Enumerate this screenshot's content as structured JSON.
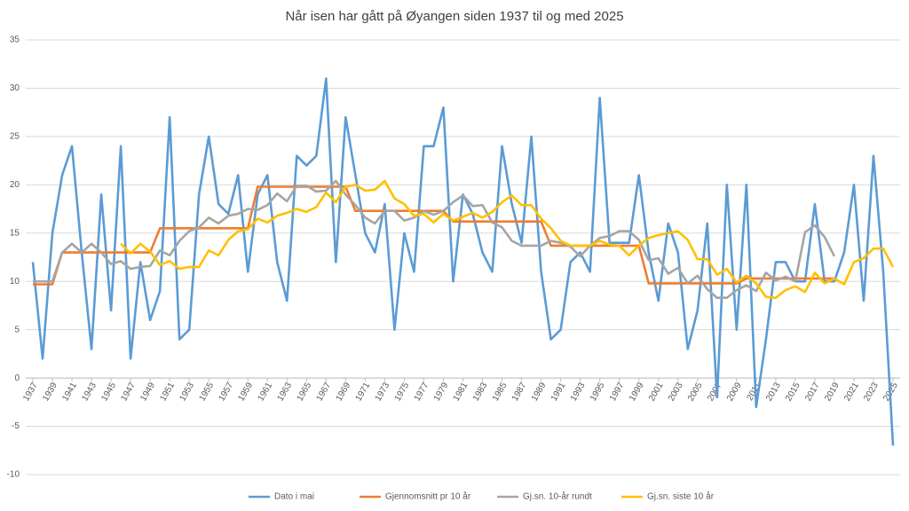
{
  "chart_data": {
    "type": "line",
    "title": "Når isen har gått på Øyangen siden 1937 til og med 2025",
    "x": [
      1937,
      1938,
      1939,
      1940,
      1941,
      1942,
      1943,
      1944,
      1945,
      1946,
      1947,
      1948,
      1949,
      1950,
      1951,
      1952,
      1953,
      1954,
      1955,
      1956,
      1957,
      1958,
      1959,
      1960,
      1961,
      1962,
      1963,
      1964,
      1965,
      1966,
      1967,
      1968,
      1969,
      1970,
      1971,
      1972,
      1973,
      1974,
      1975,
      1976,
      1977,
      1978,
      1979,
      1980,
      1981,
      1982,
      1983,
      1984,
      1985,
      1986,
      1987,
      1988,
      1989,
      1990,
      1991,
      1992,
      1993,
      1994,
      1995,
      1996,
      1997,
      1998,
      1999,
      2000,
      2001,
      2002,
      2003,
      2004,
      2005,
      2006,
      2007,
      2008,
      2009,
      2010,
      2011,
      2012,
      2013,
      2014,
      2015,
      2016,
      2017,
      2018,
      2019,
      2020,
      2021,
      2022,
      2023,
      2024,
      2025
    ],
    "xlim": [
      1937,
      2025
    ],
    "xticks": [
      1937,
      1939,
      1941,
      1943,
      1945,
      1947,
      1949,
      1951,
      1953,
      1955,
      1957,
      1959,
      1961,
      1963,
      1965,
      1967,
      1969,
      1971,
      1973,
      1975,
      1977,
      1979,
      1981,
      1983,
      1985,
      1987,
      1989,
      1991,
      1993,
      1995,
      1997,
      1999,
      2001,
      2003,
      2005,
      2007,
      2009,
      2011,
      2013,
      2015,
      2017,
      2019,
      2021,
      2023,
      2025
    ],
    "ylim": [
      -10,
      35
    ],
    "yticks": [
      -10,
      -5,
      0,
      5,
      10,
      15,
      20,
      25,
      30,
      35
    ],
    "grid": true,
    "legend": "bottom",
    "series": [
      {
        "name": "Dato i mai",
        "color": "#5b9bd5",
        "values": [
          12,
          2,
          15,
          21,
          24,
          13,
          3,
          19,
          7,
          24,
          2,
          12,
          6,
          9,
          27,
          4,
          5,
          19,
          25,
          18,
          17,
          21,
          11,
          19,
          21,
          12,
          8,
          23,
          22,
          23,
          31,
          12,
          27,
          21,
          15,
          13,
          18,
          5,
          15,
          11,
          24,
          24,
          28,
          10,
          19,
          17,
          13,
          11,
          24,
          18,
          14,
          25,
          11,
          4,
          5,
          12,
          13,
          11,
          29,
          14,
          14,
          14,
          21,
          13,
          8,
          16,
          13,
          3,
          7,
          16,
          -2,
          20,
          5,
          20,
          -3,
          4,
          12,
          12,
          10,
          10,
          18,
          10,
          10,
          13,
          20,
          8,
          23,
          11,
          -7
        ]
      },
      {
        "name": "Gjennomsnitt pr 10 år",
        "color": "#ed7d31",
        "values": [
          9.7,
          9.7,
          9.7,
          13,
          13,
          13,
          13,
          13,
          13,
          13,
          13,
          13,
          13,
          15.5,
          15.5,
          15.5,
          15.5,
          15.5,
          15.5,
          15.5,
          15.5,
          15.5,
          15.5,
          19.8,
          19.8,
          19.8,
          19.8,
          19.8,
          19.8,
          19.8,
          19.8,
          19.8,
          19.8,
          17.3,
          17.3,
          17.3,
          17.3,
          17.3,
          17.3,
          17.3,
          17.3,
          17.3,
          17.3,
          16.2,
          16.2,
          16.2,
          16.2,
          16.2,
          16.2,
          16.2,
          16.2,
          16.2,
          16.2,
          13.7,
          13.7,
          13.7,
          13.7,
          13.7,
          13.7,
          13.7,
          13.7,
          13.7,
          13.7,
          9.8,
          9.8,
          9.8,
          9.8,
          9.8,
          9.8,
          9.8,
          9.8,
          9.8,
          9.8,
          10.3,
          10.3,
          10.3,
          10.3,
          10.3,
          10.3,
          10.3,
          10.3,
          10.3,
          10.3,
          null,
          null,
          null,
          null,
          null,
          null
        ]
      },
      {
        "name": "Gj.sn. 10-år rundt",
        "color": "#a5a5a5",
        "values": [
          10,
          10,
          10,
          13,
          13.9,
          13,
          13.9,
          13,
          11.8,
          12.1,
          11.3,
          11.5,
          11.6,
          13.2,
          12.7,
          14.2,
          15.2,
          15.6,
          16.6,
          16.0,
          16.8,
          17.0,
          17.5,
          17.4,
          17.9,
          19.1,
          18.3,
          19.9,
          19.9,
          19.3,
          19.4,
          20.4,
          19.0,
          17.9,
          16.6,
          16.0,
          17.3,
          17.3,
          16.3,
          16.6,
          17.3,
          16.9,
          17.3,
          18.2,
          18.9,
          17.8,
          17.9,
          16.1,
          15.6,
          14.2,
          13.7,
          13.7,
          13.7,
          14.2,
          14.0,
          13.6,
          12.6,
          13.7,
          14.5,
          14.7,
          15.2,
          15.2,
          14.3,
          12.2,
          12.4,
          10.8,
          11.4,
          9.8,
          10.6,
          9.2,
          8.3,
          8.3,
          9.1,
          9.6,
          9.0,
          10.9,
          10.1,
          10.5,
          10.0,
          15.1,
          15.8,
          14.6,
          12.6,
          null,
          null,
          null,
          null,
          null,
          null
        ]
      },
      {
        "name": "Gj.sn. siste 10 år",
        "color": "#ffc000",
        "values": [
          null,
          null,
          null,
          null,
          null,
          null,
          null,
          null,
          null,
          13.9,
          12.9,
          13.9,
          13.1,
          11.7,
          12.1,
          11.3,
          11.5,
          11.5,
          13.2,
          12.7,
          14.3,
          15.2,
          15.4,
          16.5,
          16.1,
          16.8,
          17.1,
          17.5,
          17.2,
          17.7,
          19.2,
          18.2,
          19.8,
          20.0,
          19.4,
          19.5,
          20.4,
          18.6,
          18.0,
          16.8,
          17.0,
          16.1,
          17.0,
          16.3,
          16.7,
          17.1,
          16.6,
          17.2,
          18.2,
          18.9,
          17.9,
          17.9,
          16.5,
          15.5,
          14.2,
          13.7,
          13.7,
          13.7,
          14.2,
          13.8,
          13.7,
          12.7,
          13.7,
          14.5,
          14.8,
          15.0,
          15.2,
          14.3,
          12.3,
          12.3,
          10.7,
          11.3,
          9.9,
          10.6,
          9.8,
          8.4,
          8.3,
          9.1,
          9.5,
          8.9,
          10.9,
          9.8,
          10.3,
          9.7,
          12.0,
          12.4,
          13.4,
          13.4,
          11.5
        ]
      }
    ]
  }
}
